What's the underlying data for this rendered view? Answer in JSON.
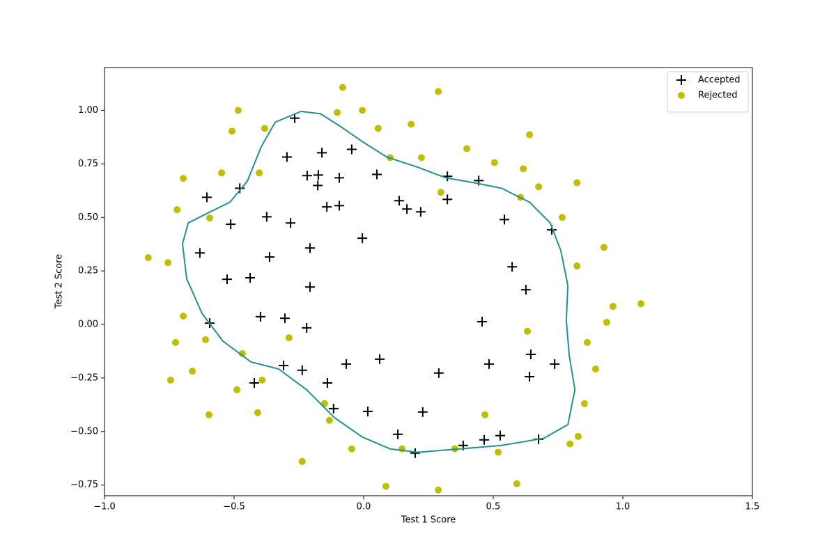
{
  "chart_data": {
    "type": "scatter",
    "xlabel": "Test 1 Score",
    "ylabel": "Test 2 Score",
    "xlim": [
      -1.0,
      1.5
    ],
    "ylim": [
      -0.8,
      1.2
    ],
    "xticks": [
      {
        "value": -1.0,
        "label": "−1.0"
      },
      {
        "value": -0.5,
        "label": "−0.5"
      },
      {
        "value": 0.0,
        "label": "0.0"
      },
      {
        "value": 0.5,
        "label": "0.5"
      },
      {
        "value": 1.0,
        "label": "1.0"
      },
      {
        "value": 1.5,
        "label": "1.5"
      }
    ],
    "yticks": [
      {
        "value": -0.75,
        "label": "−0.75"
      },
      {
        "value": -0.5,
        "label": "−0.50"
      },
      {
        "value": -0.25,
        "label": "−0.25"
      },
      {
        "value": 0.0,
        "label": "0.00"
      },
      {
        "value": 0.25,
        "label": "0.25"
      },
      {
        "value": 0.5,
        "label": "0.50"
      },
      {
        "value": 0.75,
        "label": "0.75"
      },
      {
        "value": 1.0,
        "label": "1.00"
      }
    ],
    "legend": "upper right",
    "series": [
      {
        "name": "Accepted",
        "color": "#000000",
        "marker": "plus",
        "x": [
          -0.266,
          -0.296,
          -0.161,
          -0.046,
          -0.218,
          -0.175,
          -0.094,
          0.051,
          -0.177,
          -0.142,
          -0.094,
          0.137,
          0.167,
          0.22,
          0.323,
          0.323,
          0.444,
          -0.605,
          -0.478,
          -0.513,
          -0.374,
          -0.282,
          0.543,
          0.726,
          -0.632,
          -0.363,
          -0.207,
          -0.005,
          0.573,
          0.626,
          -0.527,
          -0.438,
          -0.207,
          -0.594,
          -0.398,
          -0.304,
          -0.22,
          0.457,
          -0.309,
          -0.237,
          -0.067,
          0.062,
          0.645,
          0.484,
          0.737,
          0.29,
          0.64,
          -0.422,
          -0.14,
          -0.116,
          0.016,
          0.228,
          0.132,
          0.199,
          0.384,
          0.465,
          0.527,
          0.675
        ],
        "y": [
          0.964,
          0.782,
          0.802,
          0.818,
          0.695,
          0.698,
          0.685,
          0.701,
          0.649,
          0.549,
          0.555,
          0.578,
          0.539,
          0.526,
          0.692,
          0.584,
          0.672,
          0.594,
          0.636,
          0.468,
          0.503,
          0.474,
          0.49,
          0.442,
          0.334,
          0.315,
          0.357,
          0.403,
          0.269,
          0.162,
          0.211,
          0.218,
          0.175,
          0.006,
          0.036,
          0.029,
          -0.016,
          0.013,
          -0.192,
          -0.214,
          -0.185,
          -0.162,
          -0.14,
          -0.185,
          -0.185,
          -0.227,
          -0.244,
          -0.273,
          -0.273,
          -0.393,
          -0.406,
          -0.409,
          -0.513,
          -0.601,
          -0.565,
          -0.539,
          -0.519,
          -0.536
        ]
      },
      {
        "name": "Rejected",
        "color": "#bfbf00",
        "marker": "circle",
        "x": [
          -0.081,
          0.288,
          -0.484,
          -0.102,
          -0.005,
          -0.508,
          -0.382,
          0.056,
          0.183,
          0.64,
          0.398,
          0.102,
          0.223,
          0.505,
          0.616,
          -0.548,
          -0.403,
          -0.696,
          0.675,
          0.823,
          -0.72,
          -0.594,
          0.298,
          0.605,
          0.766,
          0.927,
          -0.831,
          -0.755,
          0.823,
          0.962,
          1.07,
          0.938,
          -0.696,
          -0.726,
          -0.61,
          -0.288,
          0.632,
          0.863,
          0.895,
          -0.468,
          -0.661,
          -0.392,
          -0.745,
          -0.489,
          0.852,
          -0.151,
          -0.132,
          -0.597,
          -0.409,
          0.468,
          0.828,
          0.796,
          -0.046,
          0.148,
          0.352,
          0.519,
          -0.237,
          0.086,
          0.288,
          0.591
        ],
        "y": [
          1.107,
          1.088,
          1.0,
          0.99,
          1.0,
          0.903,
          0.916,
          0.916,
          0.935,
          0.886,
          0.821,
          0.779,
          0.779,
          0.756,
          0.727,
          0.708,
          0.708,
          0.682,
          0.643,
          0.662,
          0.536,
          0.497,
          0.617,
          0.594,
          0.5,
          0.36,
          0.312,
          0.289,
          0.273,
          0.084,
          0.097,
          0.01,
          0.039,
          -0.084,
          -0.071,
          -0.062,
          -0.032,
          -0.084,
          -0.208,
          -0.136,
          -0.218,
          -0.26,
          -0.26,
          -0.305,
          -0.37,
          -0.37,
          -0.448,
          -0.422,
          -0.412,
          -0.422,
          -0.523,
          -0.558,
          -0.581,
          -0.581,
          -0.581,
          -0.597,
          -0.64,
          -0.756,
          -0.773,
          -0.744
        ]
      }
    ],
    "boundary": {
      "color": "#21918c",
      "x": [
        -0.242,
        -0.167,
        -0.086,
        -0.005,
        0.089,
        0.21,
        0.317,
        0.425,
        0.532,
        0.64,
        0.72,
        0.761,
        0.788,
        0.782,
        0.793,
        0.815,
        0.788,
        0.694,
        0.532,
        0.371,
        0.21,
        0.102,
        -0.005,
        -0.113,
        -0.22,
        -0.328,
        -0.435,
        -0.543,
        -0.624,
        -0.683,
        -0.699,
        -0.677,
        -0.597,
        -0.516,
        -0.449,
        -0.395,
        -0.341,
        -0.242
      ],
      "y": [
        0.995,
        0.984,
        0.922,
        0.854,
        0.782,
        0.734,
        0.685,
        0.662,
        0.636,
        0.571,
        0.474,
        0.344,
        0.182,
        0.019,
        -0.143,
        -0.305,
        -0.468,
        -0.532,
        -0.565,
        -0.581,
        -0.597,
        -0.581,
        -0.526,
        -0.435,
        -0.305,
        -0.208,
        -0.175,
        -0.078,
        0.052,
        0.214,
        0.377,
        0.474,
        0.523,
        0.571,
        0.669,
        0.831,
        0.945,
        0.995
      ]
    }
  }
}
